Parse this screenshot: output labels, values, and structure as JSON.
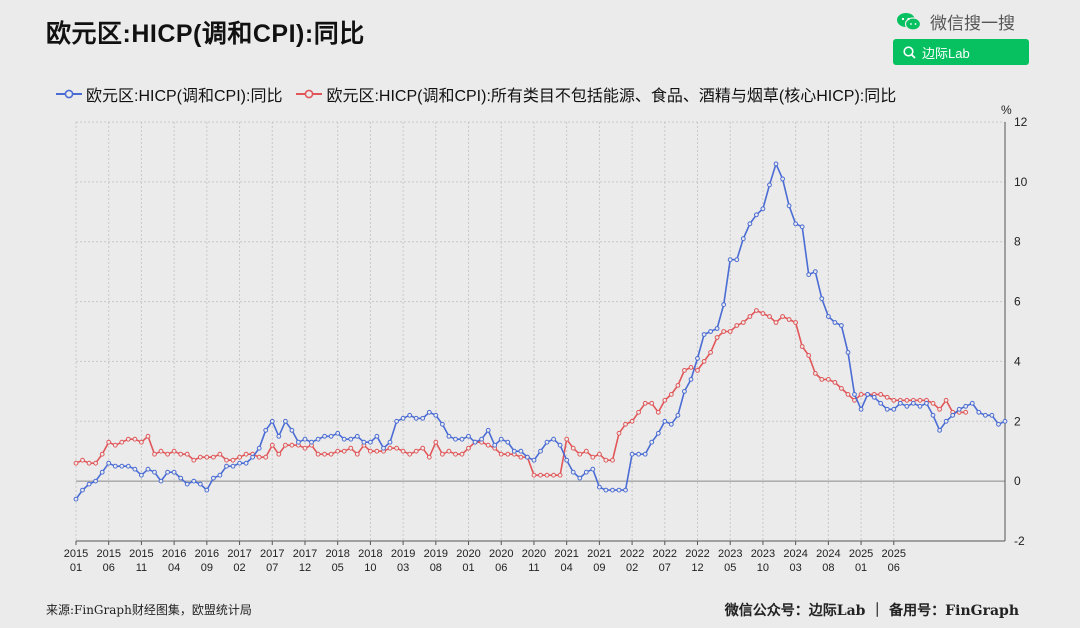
{
  "header": {
    "title": "欧元区:HICP(调和CPI):同比",
    "brand_text": "微信搜一搜",
    "search_text": "边际Lab"
  },
  "footer": {
    "source": "来源:FinGraph财经图集，欧盟统计局",
    "right": "微信公众号：边际Lab ｜ 备用号：FinGraph"
  },
  "colors": {
    "series1": "#4a6cd4",
    "series2": "#e15759",
    "search_bg": "#07c160"
  },
  "chart_data": {
    "type": "line",
    "unit": "%",
    "ylim": [
      -2,
      12
    ],
    "yticks": [
      -2,
      0,
      2,
      4,
      6,
      8,
      10,
      12
    ],
    "grid": true,
    "legend_position": "top",
    "xticks": [
      {
        "year": "2015",
        "month": "01",
        "i": 0
      },
      {
        "year": "2015",
        "month": "06",
        "i": 5
      },
      {
        "year": "2015",
        "month": "11",
        "i": 10
      },
      {
        "year": "2016",
        "month": "04",
        "i": 15
      },
      {
        "year": "2016",
        "month": "09",
        "i": 20
      },
      {
        "year": "2017",
        "month": "02",
        "i": 25
      },
      {
        "year": "2017",
        "month": "07",
        "i": 30
      },
      {
        "year": "2017",
        "month": "12",
        "i": 35
      },
      {
        "year": "2018",
        "month": "05",
        "i": 40
      },
      {
        "year": "2018",
        "month": "10",
        "i": 45
      },
      {
        "year": "2019",
        "month": "03",
        "i": 50
      },
      {
        "year": "2019",
        "month": "08",
        "i": 55
      },
      {
        "year": "2020",
        "month": "01",
        "i": 60
      },
      {
        "year": "2020",
        "month": "06",
        "i": 65
      },
      {
        "year": "2020",
        "month": "11",
        "i": 70
      },
      {
        "year": "2021",
        "month": "04",
        "i": 75
      },
      {
        "year": "2021",
        "month": "09",
        "i": 80
      },
      {
        "year": "2022",
        "month": "02",
        "i": 85
      },
      {
        "year": "2022",
        "month": "07",
        "i": 90
      },
      {
        "year": "2022",
        "month": "12",
        "i": 95
      },
      {
        "year": "2023",
        "month": "05",
        "i": 100
      },
      {
        "year": "2023",
        "month": "10",
        "i": 105
      },
      {
        "year": "2024",
        "month": "03",
        "i": 110
      },
      {
        "year": "2024",
        "month": "08",
        "i": 115
      },
      {
        "year": "2025",
        "month": "01",
        "i": 120
      },
      {
        "year": "2025",
        "month": "06",
        "i": 125
      }
    ],
    "series": [
      {
        "name": "欧元区:HICP(调和CPI):同比",
        "values": [
          -0.6,
          -0.3,
          -0.1,
          0.0,
          0.3,
          0.6,
          0.5,
          0.5,
          0.5,
          0.4,
          0.2,
          0.4,
          0.3,
          0.0,
          0.3,
          0.3,
          0.1,
          -0.1,
          0.0,
          -0.1,
          -0.3,
          0.1,
          0.2,
          0.5,
          0.5,
          0.6,
          0.6,
          0.8,
          1.1,
          1.7,
          2.0,
          1.5,
          2.0,
          1.7,
          1.3,
          1.4,
          1.3,
          1.4,
          1.5,
          1.5,
          1.6,
          1.4,
          1.4,
          1.5,
          1.3,
          1.3,
          1.5,
          1.1,
          1.3,
          2.0,
          2.1,
          2.2,
          2.1,
          2.1,
          2.3,
          2.2,
          1.9,
          1.5,
          1.4,
          1.4,
          1.5,
          1.3,
          1.4,
          1.7,
          1.2,
          1.4,
          1.3,
          1.0,
          1.0,
          0.8,
          0.7,
          1.0,
          1.3,
          1.4,
          1.2,
          0.7,
          0.3,
          0.1,
          0.3,
          0.4,
          -0.2,
          -0.3,
          -0.3,
          -0.3,
          -0.3,
          0.9,
          0.9,
          0.9,
          1.3,
          1.6,
          2.0,
          1.9,
          2.2,
          3.0,
          3.4,
          4.1,
          4.9,
          5.0,
          5.1,
          5.9,
          7.4,
          7.4,
          8.1,
          8.6,
          8.9,
          9.1,
          9.9,
          10.6,
          10.1,
          9.2,
          8.6,
          8.5,
          6.9,
          7.0,
          6.1,
          5.5,
          5.3,
          5.2,
          4.3,
          2.9,
          2.4,
          2.9,
          2.8,
          2.6,
          2.4,
          2.4,
          2.6,
          2.5,
          2.6,
          2.5,
          2.6,
          2.2,
          1.7,
          2.0,
          2.2,
          2.4,
          2.5,
          2.6,
          2.3,
          2.2,
          2.2,
          1.9,
          2.0
        ]
      },
      {
        "name": "欧元区:HICP(调和CPI):所有类目不包括能源、食品、酒精与烟草(核心HICP):同比",
        "values": [
          0.6,
          0.7,
          0.6,
          0.6,
          0.9,
          1.3,
          1.2,
          1.3,
          1.4,
          1.4,
          1.3,
          1.5,
          0.9,
          1.0,
          0.9,
          1.0,
          0.9,
          0.9,
          0.7,
          0.8,
          0.8,
          0.8,
          0.9,
          0.7,
          0.7,
          0.8,
          0.9,
          0.9,
          0.8,
          0.8,
          1.2,
          0.9,
          1.2,
          1.2,
          1.2,
          1.1,
          1.2,
          0.9,
          0.9,
          0.9,
          1.0,
          1.0,
          1.1,
          0.9,
          1.2,
          1.0,
          1.0,
          1.0,
          1.1,
          1.1,
          1.0,
          0.9,
          1.0,
          1.1,
          0.8,
          1.3,
          0.9,
          1.0,
          0.9,
          0.9,
          1.1,
          1.3,
          1.3,
          1.2,
          1.1,
          0.9,
          0.9,
          0.9,
          0.8,
          0.8,
          0.2,
          0.2,
          0.2,
          0.2,
          0.2,
          1.4,
          1.1,
          0.9,
          1.0,
          0.8,
          0.9,
          0.7,
          0.7,
          1.6,
          1.9,
          2.0,
          2.3,
          2.6,
          2.6,
          2.3,
          2.7,
          2.9,
          3.2,
          3.7,
          3.8,
          3.7,
          4.0,
          4.3,
          4.8,
          5.0,
          5.0,
          5.2,
          5.3,
          5.5,
          5.7,
          5.6,
          5.5,
          5.3,
          5.5,
          5.4,
          5.3,
          4.5,
          4.2,
          3.6,
          3.4,
          3.4,
          3.3,
          3.1,
          2.9,
          2.7,
          2.9,
          2.9,
          2.9,
          2.9,
          2.8,
          2.7,
          2.7,
          2.7,
          2.7,
          2.7,
          2.7,
          2.6,
          2.4,
          2.7,
          2.3,
          2.3,
          2.3
        ]
      }
    ]
  }
}
